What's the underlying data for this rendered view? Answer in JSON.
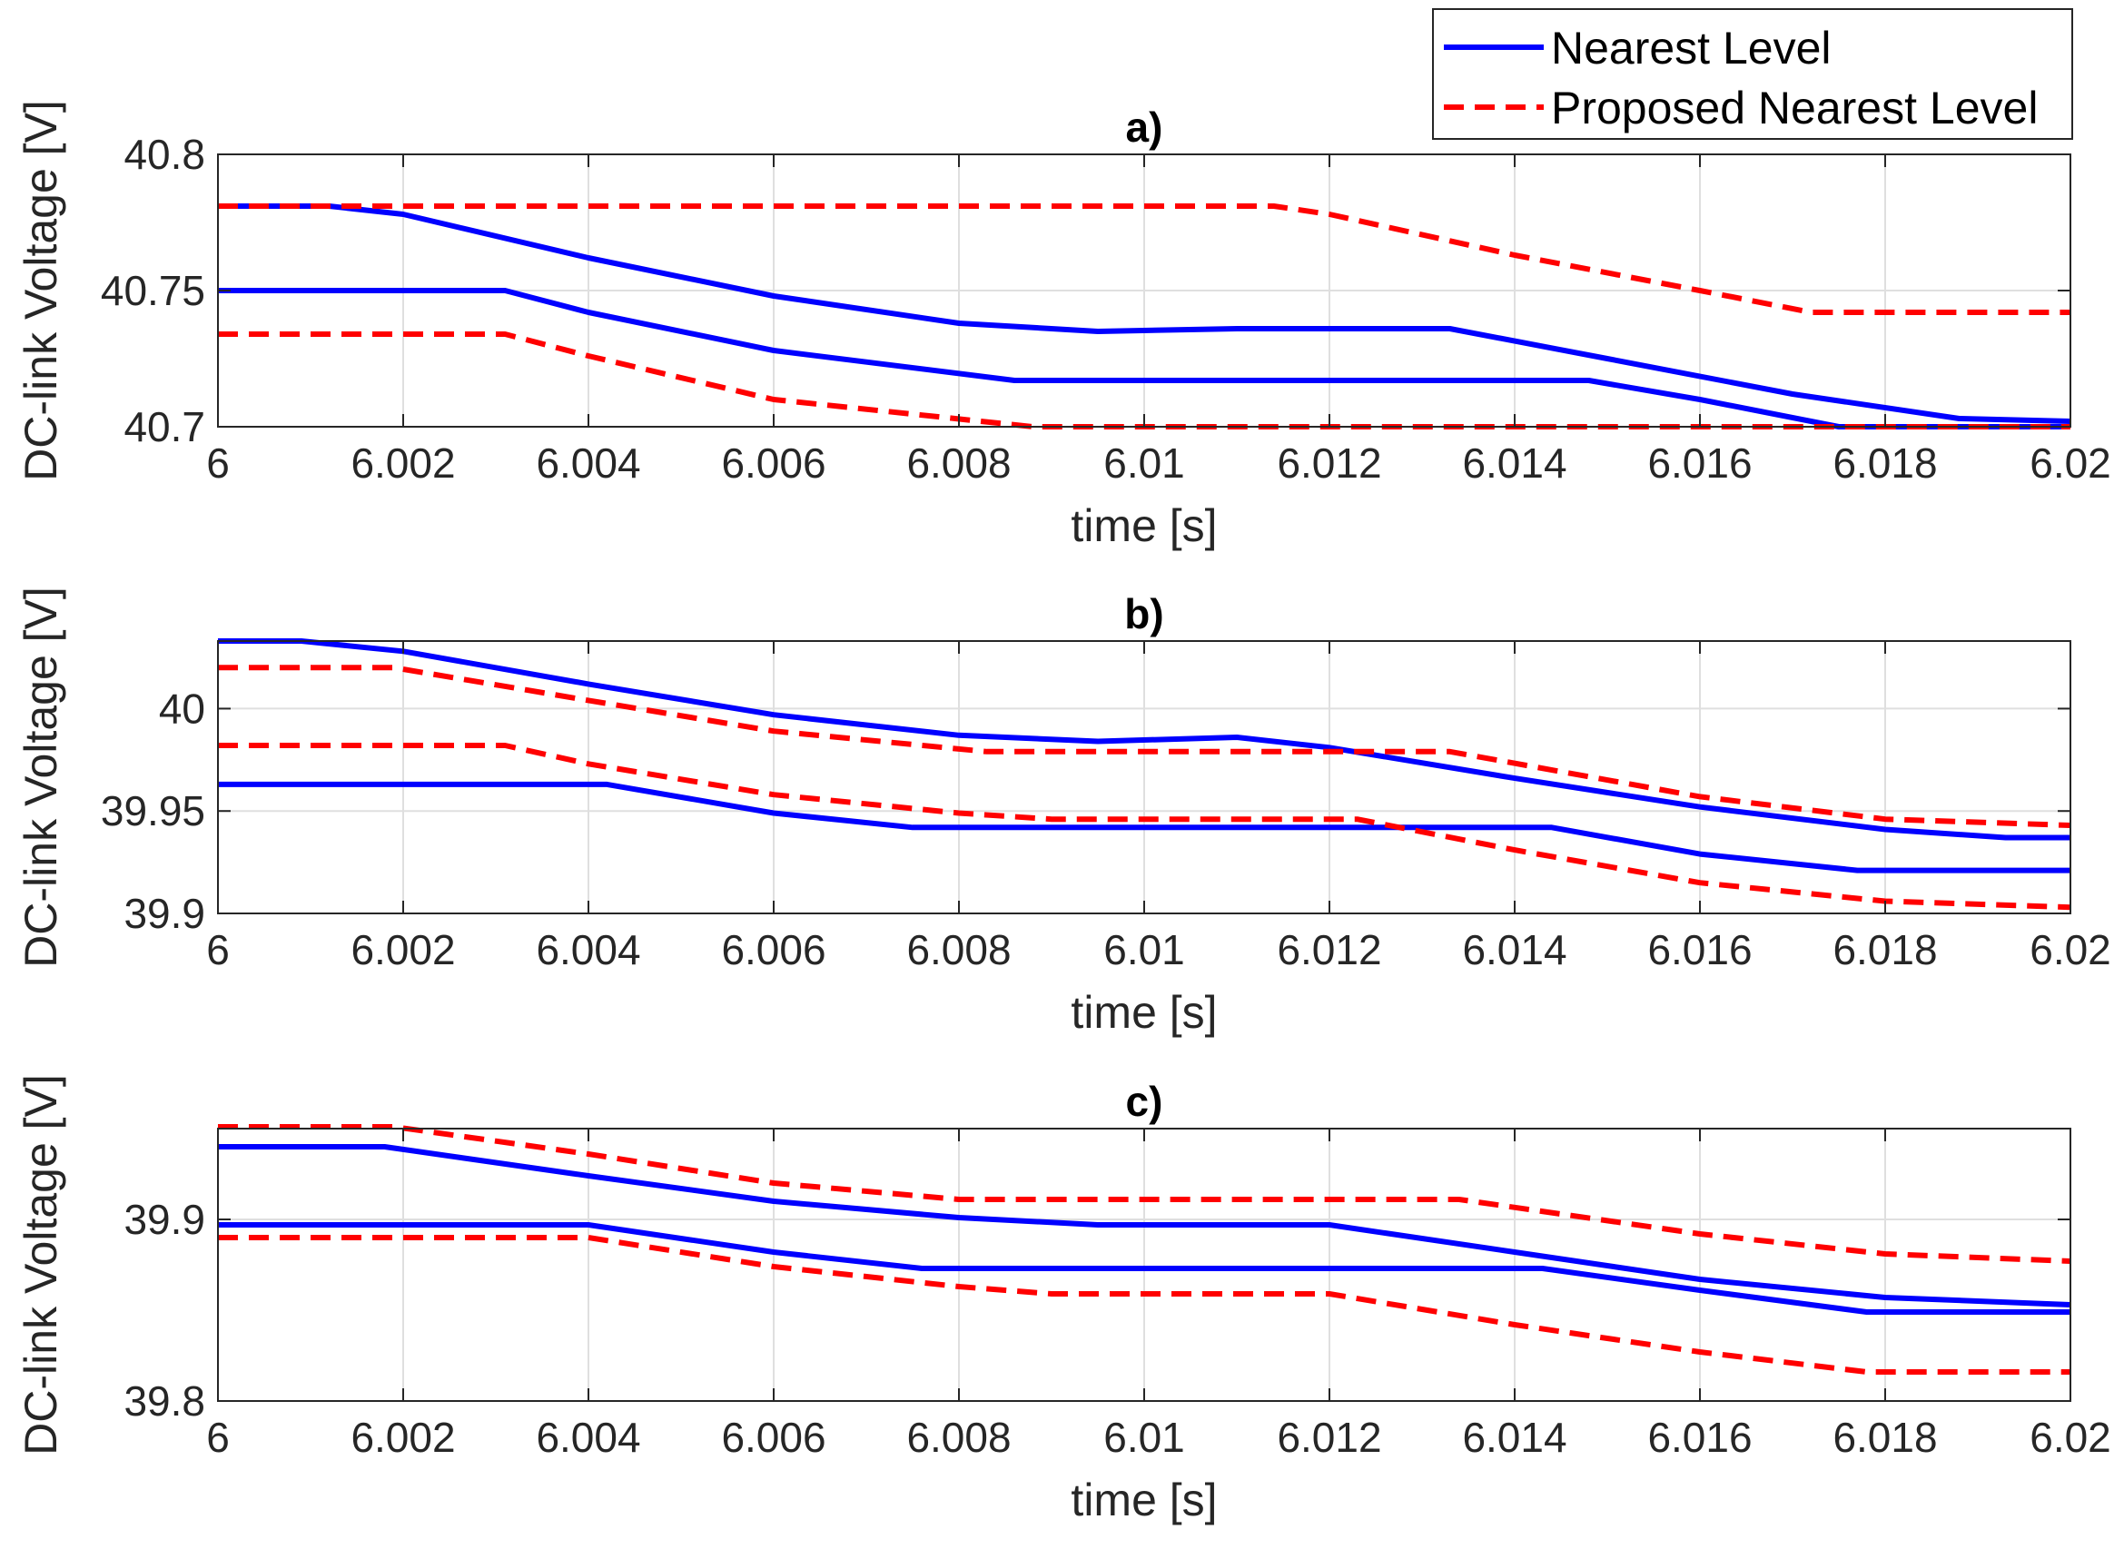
{
  "legend": {
    "entries": [
      "Nearest Level",
      "Proposed Nearest Level"
    ]
  },
  "chart_data": [
    {
      "type": "line",
      "title": "a)",
      "xlabel": "time [s]",
      "ylabel": "DC-link Voltage [V]",
      "xlim": [
        6,
        6.02
      ],
      "ylim": [
        40.7,
        40.8
      ],
      "xticks": [
        "6",
        "6.002",
        "6.004",
        "6.006",
        "6.008",
        "6.01",
        "6.012",
        "6.014",
        "6.016",
        "6.018",
        "6.02"
      ],
      "yticks": [
        "40.7",
        "40.75",
        "40.8"
      ],
      "grid": true,
      "series": [
        {
          "name": "Nearest Level",
          "style": "solid",
          "color": "#0000ff",
          "x": [
            6.0,
            6.0012,
            6.002,
            6.004,
            6.006,
            6.008,
            6.0095,
            6.011,
            6.0133,
            6.015,
            6.017,
            6.0188,
            6.02
          ],
          "y": [
            40.781,
            40.781,
            40.778,
            40.762,
            40.748,
            40.738,
            40.735,
            40.736,
            40.736,
            40.725,
            40.712,
            40.703,
            40.702
          ]
        },
        {
          "name": "Nearest Level",
          "style": "solid",
          "color": "#0000ff",
          "x": [
            6.0,
            6.0031,
            6.004,
            6.006,
            6.0086,
            6.0148,
            6.016,
            6.0175,
            6.02
          ],
          "y": [
            40.75,
            40.75,
            40.742,
            40.728,
            40.717,
            40.717,
            40.71,
            40.7,
            40.7
          ]
        },
        {
          "name": "Proposed Nearest Level",
          "style": "dashed",
          "color": "#ff0000",
          "x": [
            6.0,
            6.0114,
            6.012,
            6.014,
            6.016,
            6.0172,
            6.02
          ],
          "y": [
            40.781,
            40.781,
            40.778,
            40.763,
            40.75,
            40.742,
            40.742
          ]
        },
        {
          "name": "Proposed Nearest Level",
          "style": "dashed",
          "color": "#ff0000",
          "x": [
            6.0,
            6.0031,
            6.004,
            6.006,
            6.0088,
            6.02
          ],
          "y": [
            40.734,
            40.734,
            40.726,
            40.71,
            40.7,
            40.7
          ]
        }
      ]
    },
    {
      "type": "line",
      "title": "b)",
      "xlabel": "time [s]",
      "ylabel": "DC-link Voltage [V]",
      "xlim": [
        6,
        6.02
      ],
      "ylim": [
        39.9,
        40.033
      ],
      "xticks": [
        "6",
        "6.002",
        "6.004",
        "6.006",
        "6.008",
        "6.01",
        "6.012",
        "6.014",
        "6.016",
        "6.018",
        "6.02"
      ],
      "yticks": [
        "39.9",
        "39.95",
        "40"
      ],
      "grid": true,
      "series": [
        {
          "name": "Nearest Level",
          "style": "solid",
          "color": "#0000ff",
          "x": [
            6.0,
            6.0009,
            6.002,
            6.004,
            6.006,
            6.008,
            6.0095,
            6.011,
            6.012,
            6.014,
            6.016,
            6.018,
            6.0193,
            6.02
          ],
          "y": [
            40.033,
            40.033,
            40.028,
            40.012,
            39.997,
            39.987,
            39.984,
            39.986,
            39.981,
            39.966,
            39.952,
            39.941,
            39.937,
            39.937
          ]
        },
        {
          "name": "Nearest Level",
          "style": "solid",
          "color": "#0000ff",
          "x": [
            6.0,
            6.0042,
            6.006,
            6.0075,
            6.0144,
            6.016,
            6.0177,
            6.02
          ],
          "y": [
            39.963,
            39.963,
            39.949,
            39.942,
            39.942,
            39.929,
            39.921,
            39.921
          ]
        },
        {
          "name": "Proposed Nearest Level",
          "style": "dashed",
          "color": "#ff0000",
          "x": [
            6.0,
            6.0019,
            6.004,
            6.006,
            6.0083,
            6.0133,
            6.016,
            6.018,
            6.02
          ],
          "y": [
            40.02,
            40.02,
            40.004,
            39.989,
            39.979,
            39.979,
            39.957,
            39.946,
            39.943
          ]
        },
        {
          "name": "Proposed Nearest Level",
          "style": "dashed",
          "color": "#ff0000",
          "x": [
            6.0,
            6.0031,
            6.004,
            6.006,
            6.008,
            6.009,
            6.0123,
            6.014,
            6.016,
            6.018,
            6.02
          ],
          "y": [
            39.982,
            39.982,
            39.973,
            39.958,
            39.949,
            39.946,
            39.946,
            39.931,
            39.915,
            39.906,
            39.903
          ]
        }
      ]
    },
    {
      "type": "line",
      "title": "c)",
      "xlabel": "time [s]",
      "ylabel": "DC-link Voltage [V]",
      "xlim": [
        6,
        6.02
      ],
      "ylim": [
        39.8,
        39.95
      ],
      "xticks": [
        "6",
        "6.002",
        "6.004",
        "6.006",
        "6.008",
        "6.01",
        "6.012",
        "6.014",
        "6.016",
        "6.018",
        "6.02"
      ],
      "yticks": [
        "39.8",
        "39.9"
      ],
      "grid": true,
      "series": [
        {
          "name": "Nearest Level",
          "style": "solid",
          "color": "#0000ff",
          "x": [
            6.0,
            6.0018,
            6.004,
            6.006,
            6.008,
            6.0095,
            6.012,
            6.014,
            6.016,
            6.018,
            6.02
          ],
          "y": [
            39.94,
            39.94,
            39.924,
            39.91,
            39.901,
            39.897,
            39.897,
            39.882,
            39.867,
            39.857,
            39.853
          ]
        },
        {
          "name": "Nearest Level",
          "style": "solid",
          "color": "#0000ff",
          "x": [
            6.0,
            6.004,
            6.006,
            6.0076,
            6.0143,
            6.016,
            6.0178,
            6.02
          ],
          "y": [
            39.897,
            39.897,
            39.882,
            39.873,
            39.873,
            39.861,
            39.849,
            39.849
          ]
        },
        {
          "name": "Proposed Nearest Level",
          "style": "dashed",
          "color": "#ff0000",
          "x": [
            6.0,
            6.0019,
            6.004,
            6.006,
            6.008,
            6.0134,
            6.016,
            6.018,
            6.02
          ],
          "y": [
            39.951,
            39.951,
            39.936,
            39.92,
            39.911,
            39.911,
            39.892,
            39.881,
            39.877
          ]
        },
        {
          "name": "Proposed Nearest Level",
          "style": "dashed",
          "color": "#ff0000",
          "x": [
            6.0,
            6.004,
            6.006,
            6.008,
            6.009,
            6.012,
            6.014,
            6.016,
            6.0178,
            6.02
          ],
          "y": [
            39.89,
            39.89,
            39.874,
            39.863,
            39.859,
            39.859,
            39.842,
            39.827,
            39.816,
            39.816
          ]
        }
      ]
    }
  ]
}
